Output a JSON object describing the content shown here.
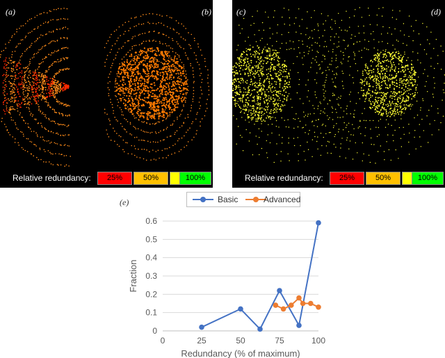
{
  "figure": {
    "panel_labels": [
      "(a)",
      "(b)",
      "(c)",
      "(d)",
      "(e)"
    ],
    "relative_redundancy_label": "Relative redundancy:",
    "redundancy_levels": [
      {
        "label": "25%",
        "color": "#ff0000"
      },
      {
        "label": "50%",
        "color": "#ffc000"
      },
      {
        "label": "75%",
        "color": "#ffff00"
      },
      {
        "label": "100%",
        "color": "#00ff00"
      }
    ],
    "colors": {
      "left_points": "#ff8c1a",
      "left_core": "#ff7a00",
      "left_red": "#ff2a00",
      "right_points": "#ffff33"
    }
  },
  "chart_data": {
    "type": "line",
    "xlabel": "Redundancy (% of maximum)",
    "ylabel": "Fraction",
    "xlim": [
      0,
      100
    ],
    "ylim": [
      0,
      0.6
    ],
    "xticks": [
      0,
      25,
      50,
      75,
      100
    ],
    "yticks": [
      0,
      0.1,
      0.2,
      0.3,
      0.4,
      0.5,
      0.6
    ],
    "legend_position": "top-center",
    "series": [
      {
        "name": "Basic",
        "color": "#4472c4",
        "x": [
          25,
          50,
          62.5,
          75,
          87.5,
          100
        ],
        "y": [
          0.02,
          0.12,
          0.01,
          0.22,
          0.03,
          0.59
        ]
      },
      {
        "name": "Advanced",
        "color": "#ed7d31",
        "x": [
          72.5,
          77.5,
          82.5,
          87.5,
          90,
          95,
          100
        ],
        "y": [
          0.14,
          0.12,
          0.14,
          0.18,
          0.15,
          0.15,
          0.13
        ]
      }
    ]
  }
}
